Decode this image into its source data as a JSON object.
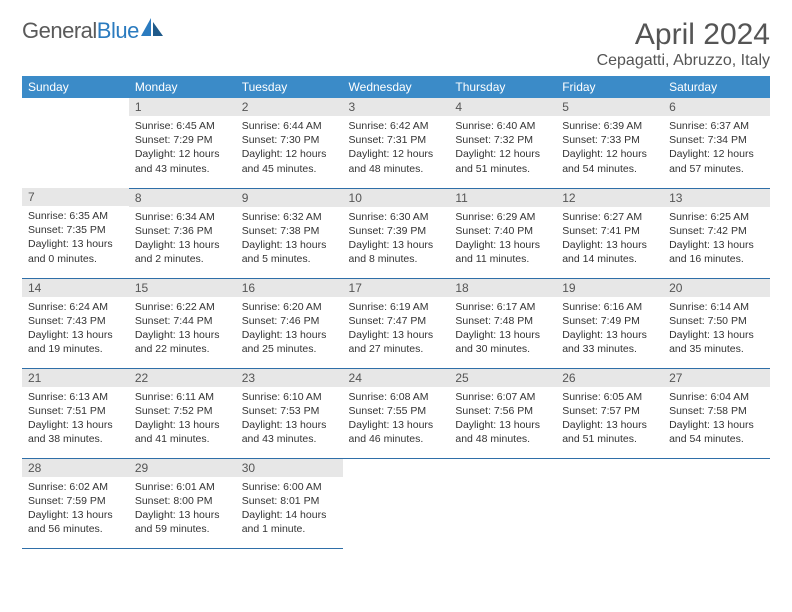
{
  "brand": {
    "part1": "General",
    "part2": "Blue"
  },
  "title": "April 2024",
  "location": "Cepagatti, Abruzzo, Italy",
  "colors": {
    "header_bg": "#3b8bc8",
    "header_text": "#ffffff",
    "daynum_bg": "#e7e7e7",
    "border": "#2f6fa8",
    "title_color": "#555555",
    "text_color": "#333333",
    "logo_blue": "#2b7bbf",
    "logo_grey": "#5a5a5a"
  },
  "dow": [
    "Sunday",
    "Monday",
    "Tuesday",
    "Wednesday",
    "Thursday",
    "Friday",
    "Saturday"
  ],
  "weeks": [
    [
      {
        "empty": true
      },
      {
        "n": "1",
        "sr": "6:45 AM",
        "ss": "7:29 PM",
        "dl": "12 hours and 43 minutes."
      },
      {
        "n": "2",
        "sr": "6:44 AM",
        "ss": "7:30 PM",
        "dl": "12 hours and 45 minutes."
      },
      {
        "n": "3",
        "sr": "6:42 AM",
        "ss": "7:31 PM",
        "dl": "12 hours and 48 minutes."
      },
      {
        "n": "4",
        "sr": "6:40 AM",
        "ss": "7:32 PM",
        "dl": "12 hours and 51 minutes."
      },
      {
        "n": "5",
        "sr": "6:39 AM",
        "ss": "7:33 PM",
        "dl": "12 hours and 54 minutes."
      },
      {
        "n": "6",
        "sr": "6:37 AM",
        "ss": "7:34 PM",
        "dl": "12 hours and 57 minutes."
      }
    ],
    [
      {
        "n": "7",
        "sr": "6:35 AM",
        "ss": "7:35 PM",
        "dl": "13 hours and 0 minutes."
      },
      {
        "n": "8",
        "sr": "6:34 AM",
        "ss": "7:36 PM",
        "dl": "13 hours and 2 minutes."
      },
      {
        "n": "9",
        "sr": "6:32 AM",
        "ss": "7:38 PM",
        "dl": "13 hours and 5 minutes."
      },
      {
        "n": "10",
        "sr": "6:30 AM",
        "ss": "7:39 PM",
        "dl": "13 hours and 8 minutes."
      },
      {
        "n": "11",
        "sr": "6:29 AM",
        "ss": "7:40 PM",
        "dl": "13 hours and 11 minutes."
      },
      {
        "n": "12",
        "sr": "6:27 AM",
        "ss": "7:41 PM",
        "dl": "13 hours and 14 minutes."
      },
      {
        "n": "13",
        "sr": "6:25 AM",
        "ss": "7:42 PM",
        "dl": "13 hours and 16 minutes."
      }
    ],
    [
      {
        "n": "14",
        "sr": "6:24 AM",
        "ss": "7:43 PM",
        "dl": "13 hours and 19 minutes."
      },
      {
        "n": "15",
        "sr": "6:22 AM",
        "ss": "7:44 PM",
        "dl": "13 hours and 22 minutes."
      },
      {
        "n": "16",
        "sr": "6:20 AM",
        "ss": "7:46 PM",
        "dl": "13 hours and 25 minutes."
      },
      {
        "n": "17",
        "sr": "6:19 AM",
        "ss": "7:47 PM",
        "dl": "13 hours and 27 minutes."
      },
      {
        "n": "18",
        "sr": "6:17 AM",
        "ss": "7:48 PM",
        "dl": "13 hours and 30 minutes."
      },
      {
        "n": "19",
        "sr": "6:16 AM",
        "ss": "7:49 PM",
        "dl": "13 hours and 33 minutes."
      },
      {
        "n": "20",
        "sr": "6:14 AM",
        "ss": "7:50 PM",
        "dl": "13 hours and 35 minutes."
      }
    ],
    [
      {
        "n": "21",
        "sr": "6:13 AM",
        "ss": "7:51 PM",
        "dl": "13 hours and 38 minutes."
      },
      {
        "n": "22",
        "sr": "6:11 AM",
        "ss": "7:52 PM",
        "dl": "13 hours and 41 minutes."
      },
      {
        "n": "23",
        "sr": "6:10 AM",
        "ss": "7:53 PM",
        "dl": "13 hours and 43 minutes."
      },
      {
        "n": "24",
        "sr": "6:08 AM",
        "ss": "7:55 PM",
        "dl": "13 hours and 46 minutes."
      },
      {
        "n": "25",
        "sr": "6:07 AM",
        "ss": "7:56 PM",
        "dl": "13 hours and 48 minutes."
      },
      {
        "n": "26",
        "sr": "6:05 AM",
        "ss": "7:57 PM",
        "dl": "13 hours and 51 minutes."
      },
      {
        "n": "27",
        "sr": "6:04 AM",
        "ss": "7:58 PM",
        "dl": "13 hours and 54 minutes."
      }
    ],
    [
      {
        "n": "28",
        "sr": "6:02 AM",
        "ss": "7:59 PM",
        "dl": "13 hours and 56 minutes."
      },
      {
        "n": "29",
        "sr": "6:01 AM",
        "ss": "8:00 PM",
        "dl": "13 hours and 59 minutes."
      },
      {
        "n": "30",
        "sr": "6:00 AM",
        "ss": "8:01 PM",
        "dl": "14 hours and 1 minute."
      },
      {
        "empty": true
      },
      {
        "empty": true
      },
      {
        "empty": true
      },
      {
        "empty": true
      }
    ]
  ],
  "labels": {
    "sunrise": "Sunrise: ",
    "sunset": "Sunset: ",
    "daylight": "Daylight: "
  }
}
